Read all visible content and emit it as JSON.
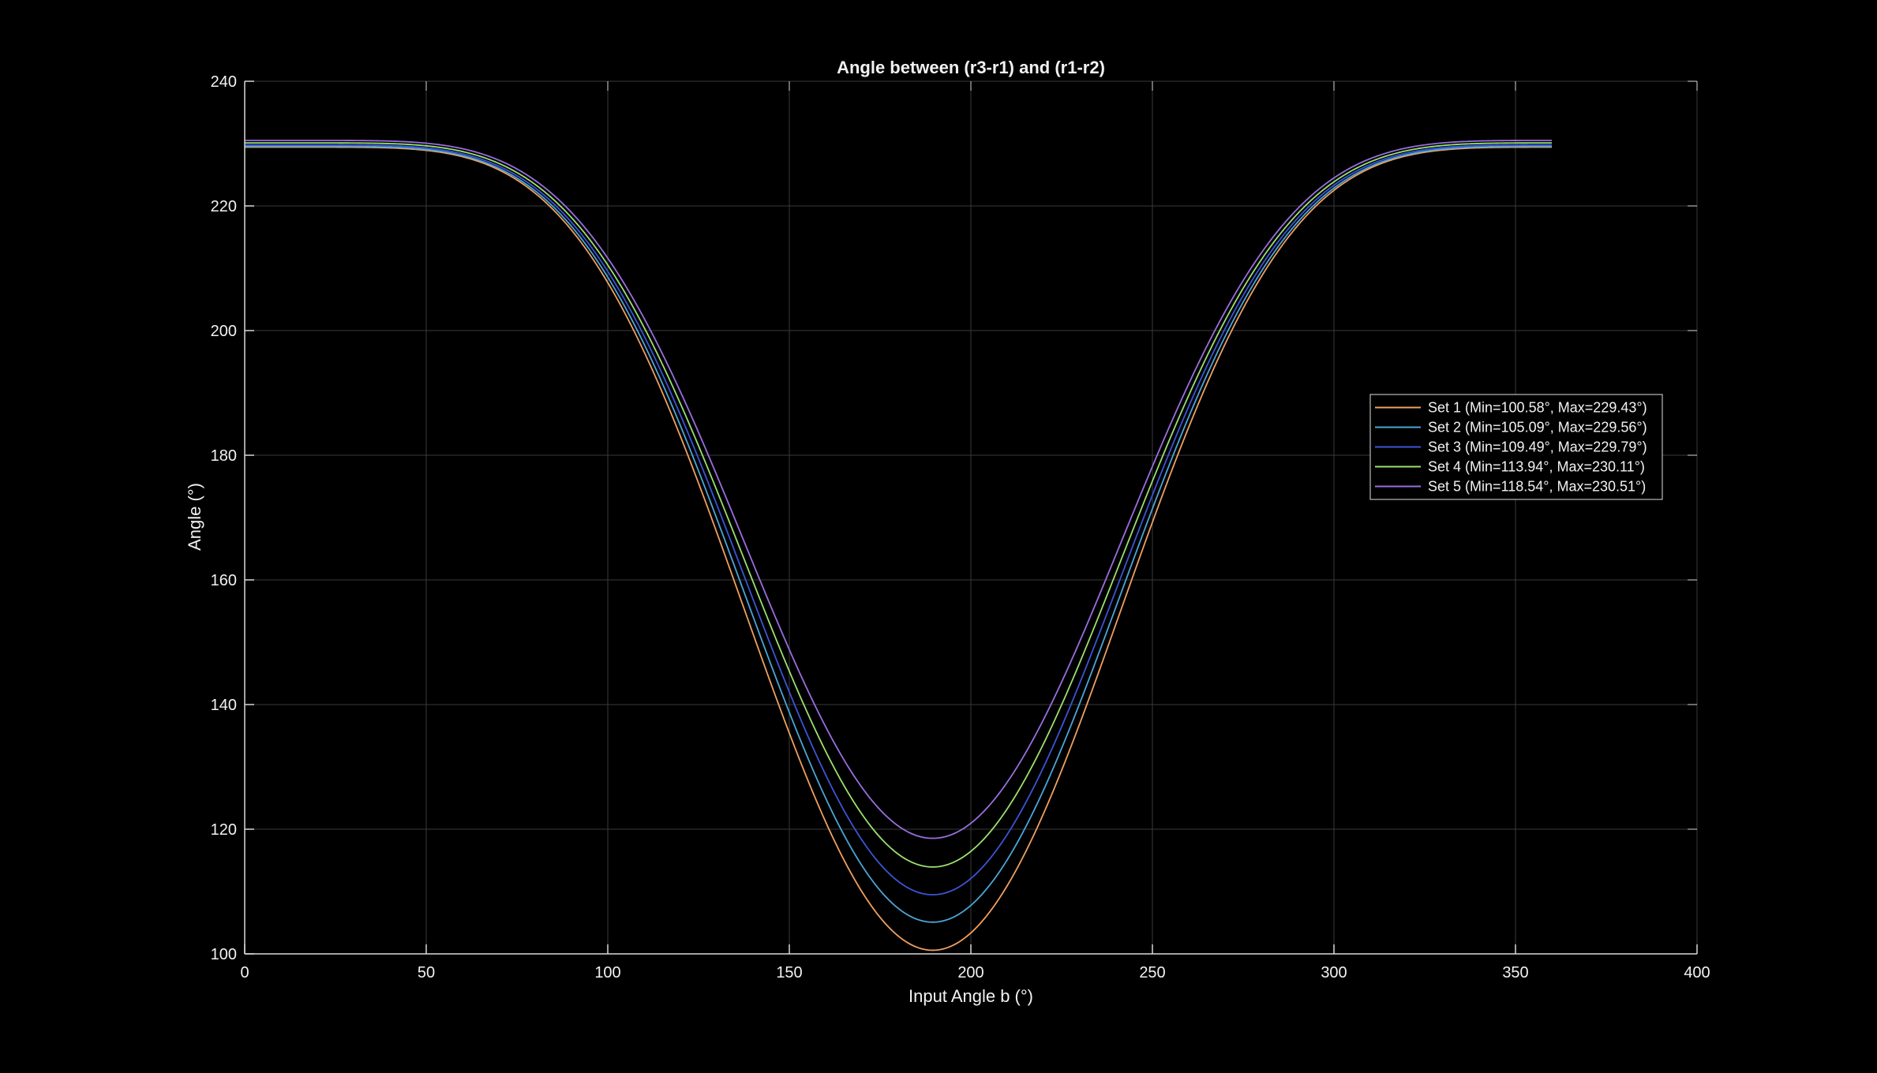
{
  "chart_data": {
    "type": "line",
    "title": "Angle between (r3-r1) and (r1-r2)",
    "xlabel": "Input Angle b (°)",
    "ylabel": "Angle (°)",
    "xlim": [
      0,
      400
    ],
    "ylim": [
      100,
      240
    ],
    "xticks": [
      0,
      50,
      100,
      150,
      200,
      250,
      300,
      350,
      400
    ],
    "yticks": [
      100,
      120,
      140,
      160,
      180,
      200,
      220,
      240
    ],
    "grid": true,
    "legend_position": "right",
    "x_range": [
      0,
      360
    ],
    "x_min_location": 189.5,
    "x_max_location": 9.5,
    "colors": {
      "background": "#000000",
      "axis": "#d9d9d9",
      "grid": "#3a3a3a",
      "text": "#f2f2f2"
    },
    "series": [
      {
        "name": "Set 1 (Min=100.58°, Max=229.43°)",
        "min": 100.58,
        "max": 229.43,
        "color": "#f0a060"
      },
      {
        "name": "Set 2 (Min=105.09°, Max=229.56°)",
        "min": 105.09,
        "max": 229.56,
        "color": "#4aa6d8"
      },
      {
        "name": "Set 3 (Min=109.49°, Max=229.79°)",
        "min": 109.49,
        "max": 229.79,
        "color": "#3b55d6"
      },
      {
        "name": "Set 4 (Min=113.94°, Max=230.11°)",
        "min": 113.94,
        "max": 230.11,
        "color": "#9be070"
      },
      {
        "name": "Set 5 (Min=118.54°, Max=230.51°)",
        "min": 118.54,
        "max": 230.51,
        "color": "#9a6ee0"
      }
    ]
  }
}
